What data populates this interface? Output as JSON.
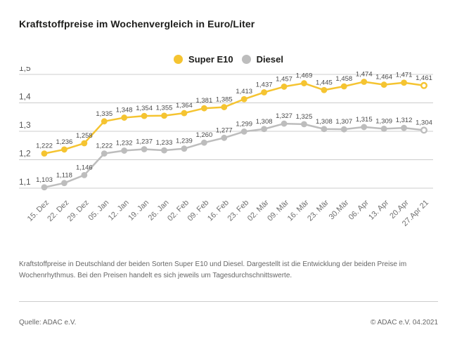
{
  "title": "Kraftstoffpreise im Wochenvergleich in Euro/Liter",
  "legend": [
    {
      "label": "Super E10",
      "color": "#F5C431"
    },
    {
      "label": "Diesel",
      "color": "#BDBDBD"
    }
  ],
  "description": "Kraftstoffpreise in Deutschland der beiden Sorten Super E10 und Diesel. Dargestellt ist die Entwicklung der beiden Preise im Wochenrhythmus. Bei den Preisen handelt es sich jeweils um Tagesdurchschnittswerte.",
  "footer": {
    "source": "Quelle: ADAC e.V.",
    "copyright": "© ADAC e.V. 04.2021"
  },
  "chart_data": {
    "type": "line",
    "title": "Kraftstoffpreise im Wochenvergleich in Euro/Liter",
    "categories": [
      "15. Dez",
      "22. Dez",
      "29. Dez",
      "05. Jan",
      "12. Jan",
      "19. Jan",
      "26. Jan",
      "02. Feb",
      "09. Feb",
      "16. Feb",
      "23. Feb",
      "02. Mär",
      "09. Mär",
      "16. Mär",
      "23. Mär",
      "30.Mär",
      "06. Apr",
      "13. Apr",
      "20.Apr",
      "27.Apr 21"
    ],
    "series": [
      {
        "name": "Super E10",
        "color": "#F5C431",
        "values": [
          1.222,
          1.236,
          1.258,
          1.335,
          1.348,
          1.354,
          1.355,
          1.364,
          1.381,
          1.385,
          1.413,
          1.437,
          1.457,
          1.469,
          1.445,
          1.458,
          1.474,
          1.464,
          1.471,
          1.461
        ]
      },
      {
        "name": "Diesel",
        "color": "#BDBDBD",
        "values": [
          1.103,
          1.118,
          1.146,
          1.222,
          1.232,
          1.237,
          1.233,
          1.239,
          1.26,
          1.277,
          1.299,
          1.308,
          1.327,
          1.325,
          1.308,
          1.307,
          1.315,
          1.309,
          1.312,
          1.304
        ]
      }
    ],
    "ylim": [
      1.1,
      1.5
    ],
    "yticks": [
      1.5,
      1.4,
      1.3,
      1.2,
      1.1
    ],
    "grid": true,
    "legend_position": "top-center",
    "value_format": "comma-decimal",
    "colors": {
      "grid": "#cccccc",
      "axis_text": "#555555",
      "xlabel_text": "#707070",
      "data_label_text": "#4a4a4a"
    }
  }
}
